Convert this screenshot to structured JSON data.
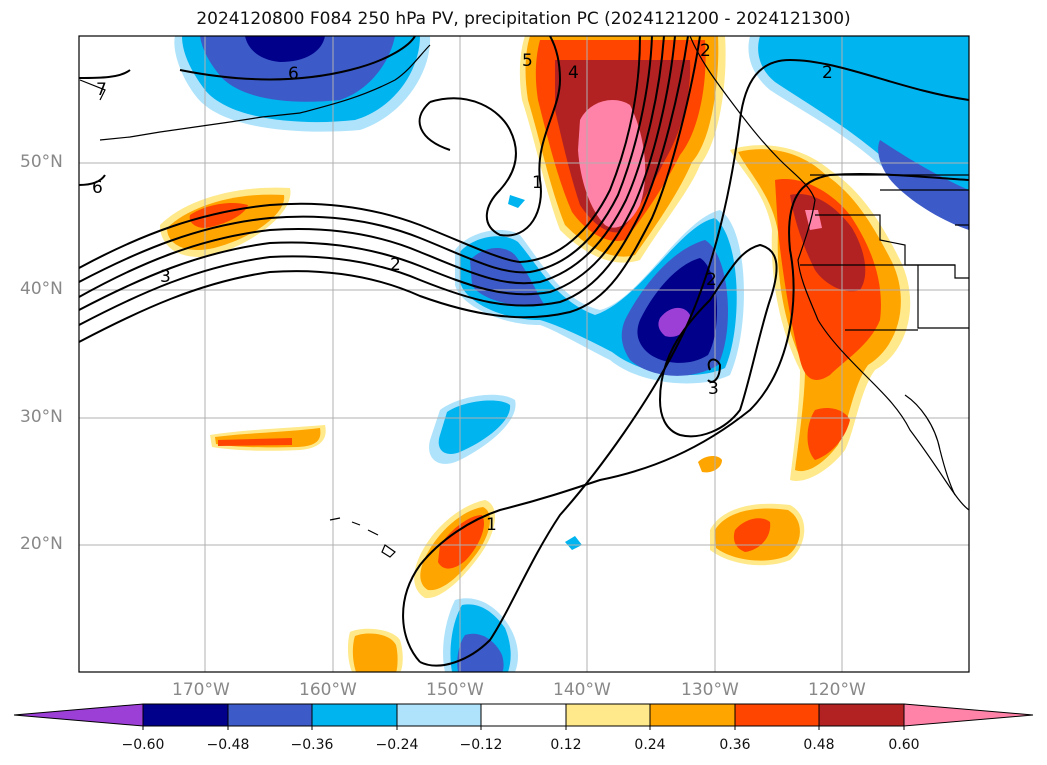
{
  "title": "2024120800 F084 250 hPa PV, precipitation PC (2024121200 - 2024121300)",
  "map": {
    "lat_labels": [
      "50°N",
      "40°N",
      "30°N",
      "20°N"
    ],
    "lon_labels": [
      "170°W",
      "160°W",
      "150°W",
      "140°W",
      "130°W",
      "120°W"
    ],
    "pv_contour_labels": [
      "6",
      "7",
      "6",
      "5",
      "4",
      "3",
      "2",
      "1",
      "2",
      "3",
      "1",
      "2",
      "2"
    ]
  },
  "colorbar": {
    "ticks": [
      "−0.60",
      "−0.48",
      "−0.36",
      "−0.24",
      "−0.12",
      "0.12",
      "0.24",
      "0.36",
      "0.48",
      "0.60"
    ],
    "colors": [
      "#9b3fd6",
      "#00008b",
      "#3c5ac8",
      "#00b4f0",
      "#aee3fb",
      "#ffffff",
      "#ffe98a",
      "#ffa500",
      "#ff4500",
      "#b22222",
      "#ff82a8",
      "#ff82a8"
    ]
  }
}
